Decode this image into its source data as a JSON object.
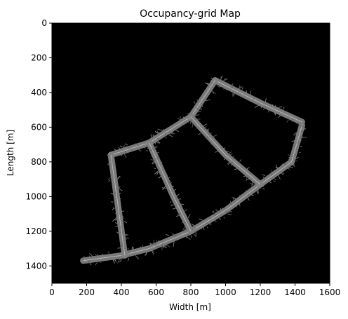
{
  "chart_data": {
    "type": "heatmap",
    "title": "Occupancy-grid Map",
    "xlabel": "Width [m]",
    "ylabel": "Length [m]",
    "xlim": [
      0,
      1600
    ],
    "ylim": [
      1500,
      0
    ],
    "xticks": [
      0,
      200,
      400,
      600,
      800,
      1000,
      1200,
      1400,
      1600
    ],
    "yticks": [
      0,
      200,
      400,
      600,
      800,
      1000,
      1200,
      1400
    ],
    "x_tick_labels": [
      "0",
      "200",
      "400",
      "600",
      "800",
      "1000",
      "1200",
      "1400",
      "1600"
    ],
    "y_tick_labels": [
      "0",
      "200",
      "400",
      "600",
      "800",
      "1000",
      "1200",
      "1400"
    ],
    "grid": false,
    "colors": {
      "background": "#000000",
      "occupied": "#7f7f7f",
      "path": "#bdbdbd"
    },
    "roads": [
      {
        "name": "top-road",
        "points": [
          [
            940,
            330
          ],
          [
            1200,
            460
          ],
          [
            1440,
            570
          ]
        ]
      },
      {
        "name": "right-arc",
        "points": [
          [
            1440,
            590
          ],
          [
            1380,
            800
          ],
          [
            1200,
            930
          ],
          [
            1000,
            1080
          ],
          [
            800,
            1200
          ],
          [
            560,
            1300
          ],
          [
            400,
            1340
          ],
          [
            180,
            1370
          ]
        ]
      },
      {
        "name": "upper-left-road",
        "points": [
          [
            340,
            760
          ],
          [
            560,
            690
          ],
          [
            800,
            540
          ],
          [
            940,
            330
          ]
        ]
      },
      {
        "name": "left-vertical",
        "points": [
          [
            340,
            760
          ],
          [
            380,
            1050
          ],
          [
            420,
            1340
          ]
        ]
      },
      {
        "name": "middle-vertical",
        "points": [
          [
            560,
            690
          ],
          [
            700,
            1000
          ],
          [
            800,
            1200
          ]
        ]
      },
      {
        "name": "right-diagonal",
        "points": [
          [
            800,
            540
          ],
          [
            1000,
            760
          ],
          [
            1200,
            930
          ]
        ]
      }
    ]
  }
}
